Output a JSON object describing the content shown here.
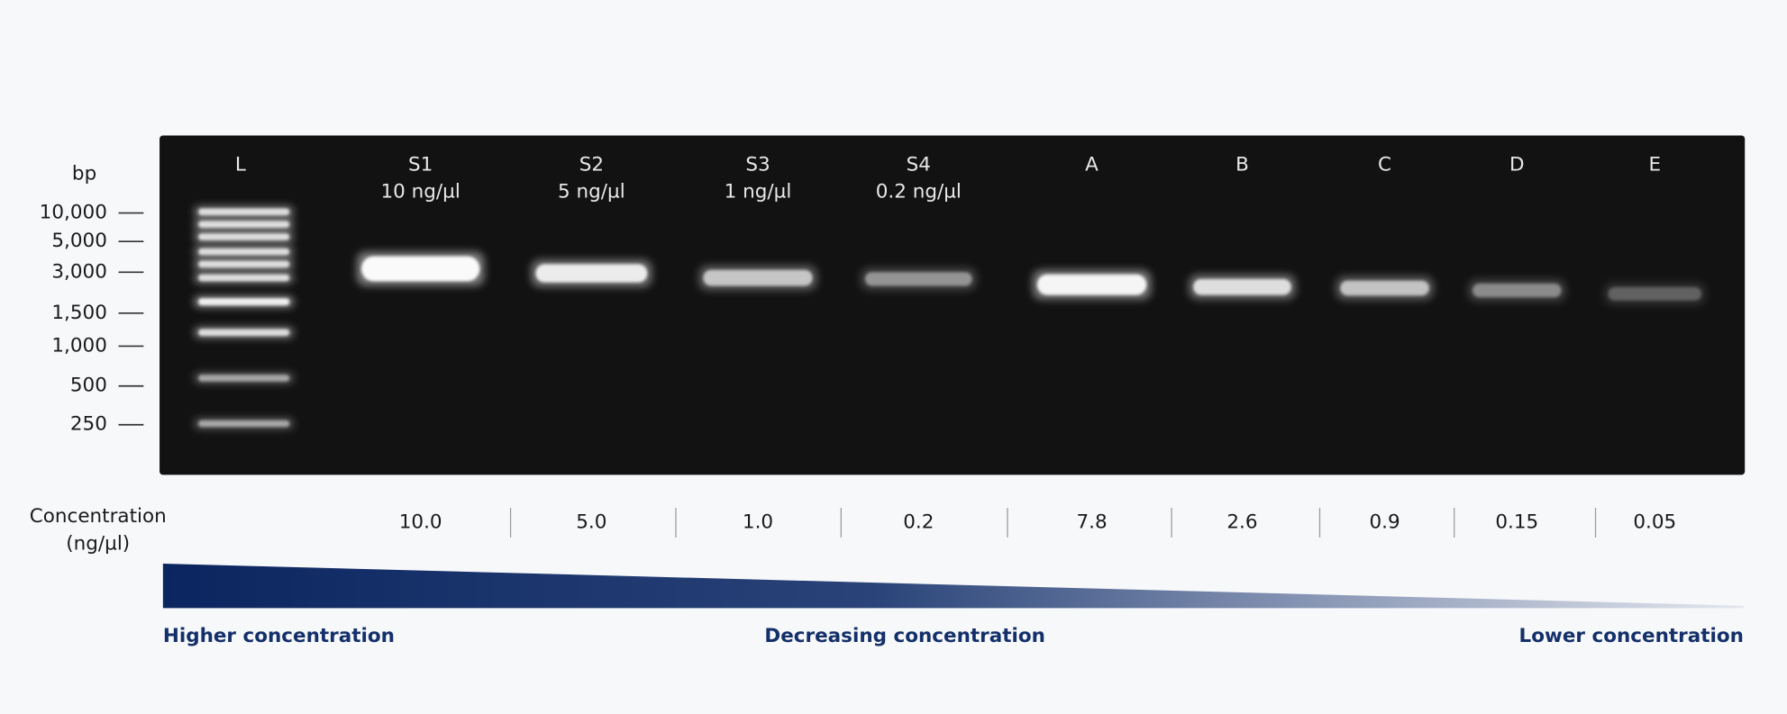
{
  "ladder": {
    "label": "L",
    "unit": "bp",
    "markers": [
      "10,000",
      "5,000",
      "3,000",
      "1,500",
      "1,000",
      "500",
      "250"
    ]
  },
  "lanes": [
    {
      "label": "S1",
      "sublabel": "10 ng/µl",
      "concentration": "10.0"
    },
    {
      "label": "S2",
      "sublabel": "5 ng/µl",
      "concentration": "5.0"
    },
    {
      "label": "S3",
      "sublabel": "1 ng/µl",
      "concentration": "1.0"
    },
    {
      "label": "S4",
      "sublabel": "0.2 ng/µl",
      "concentration": "0.2"
    },
    {
      "label": "A",
      "concentration": "7.8"
    },
    {
      "label": "B",
      "concentration": "2.6"
    },
    {
      "label": "C",
      "concentration": "0.9"
    },
    {
      "label": "D",
      "concentration": "0.15"
    },
    {
      "label": "E",
      "concentration": "0.05"
    }
  ],
  "concentration_label": [
    "Concentration",
    "(ng/µl)"
  ],
  "gradient": {
    "left": "Higher concentration",
    "center": "Decreasing concentration",
    "right": "Lower concentration"
  }
}
